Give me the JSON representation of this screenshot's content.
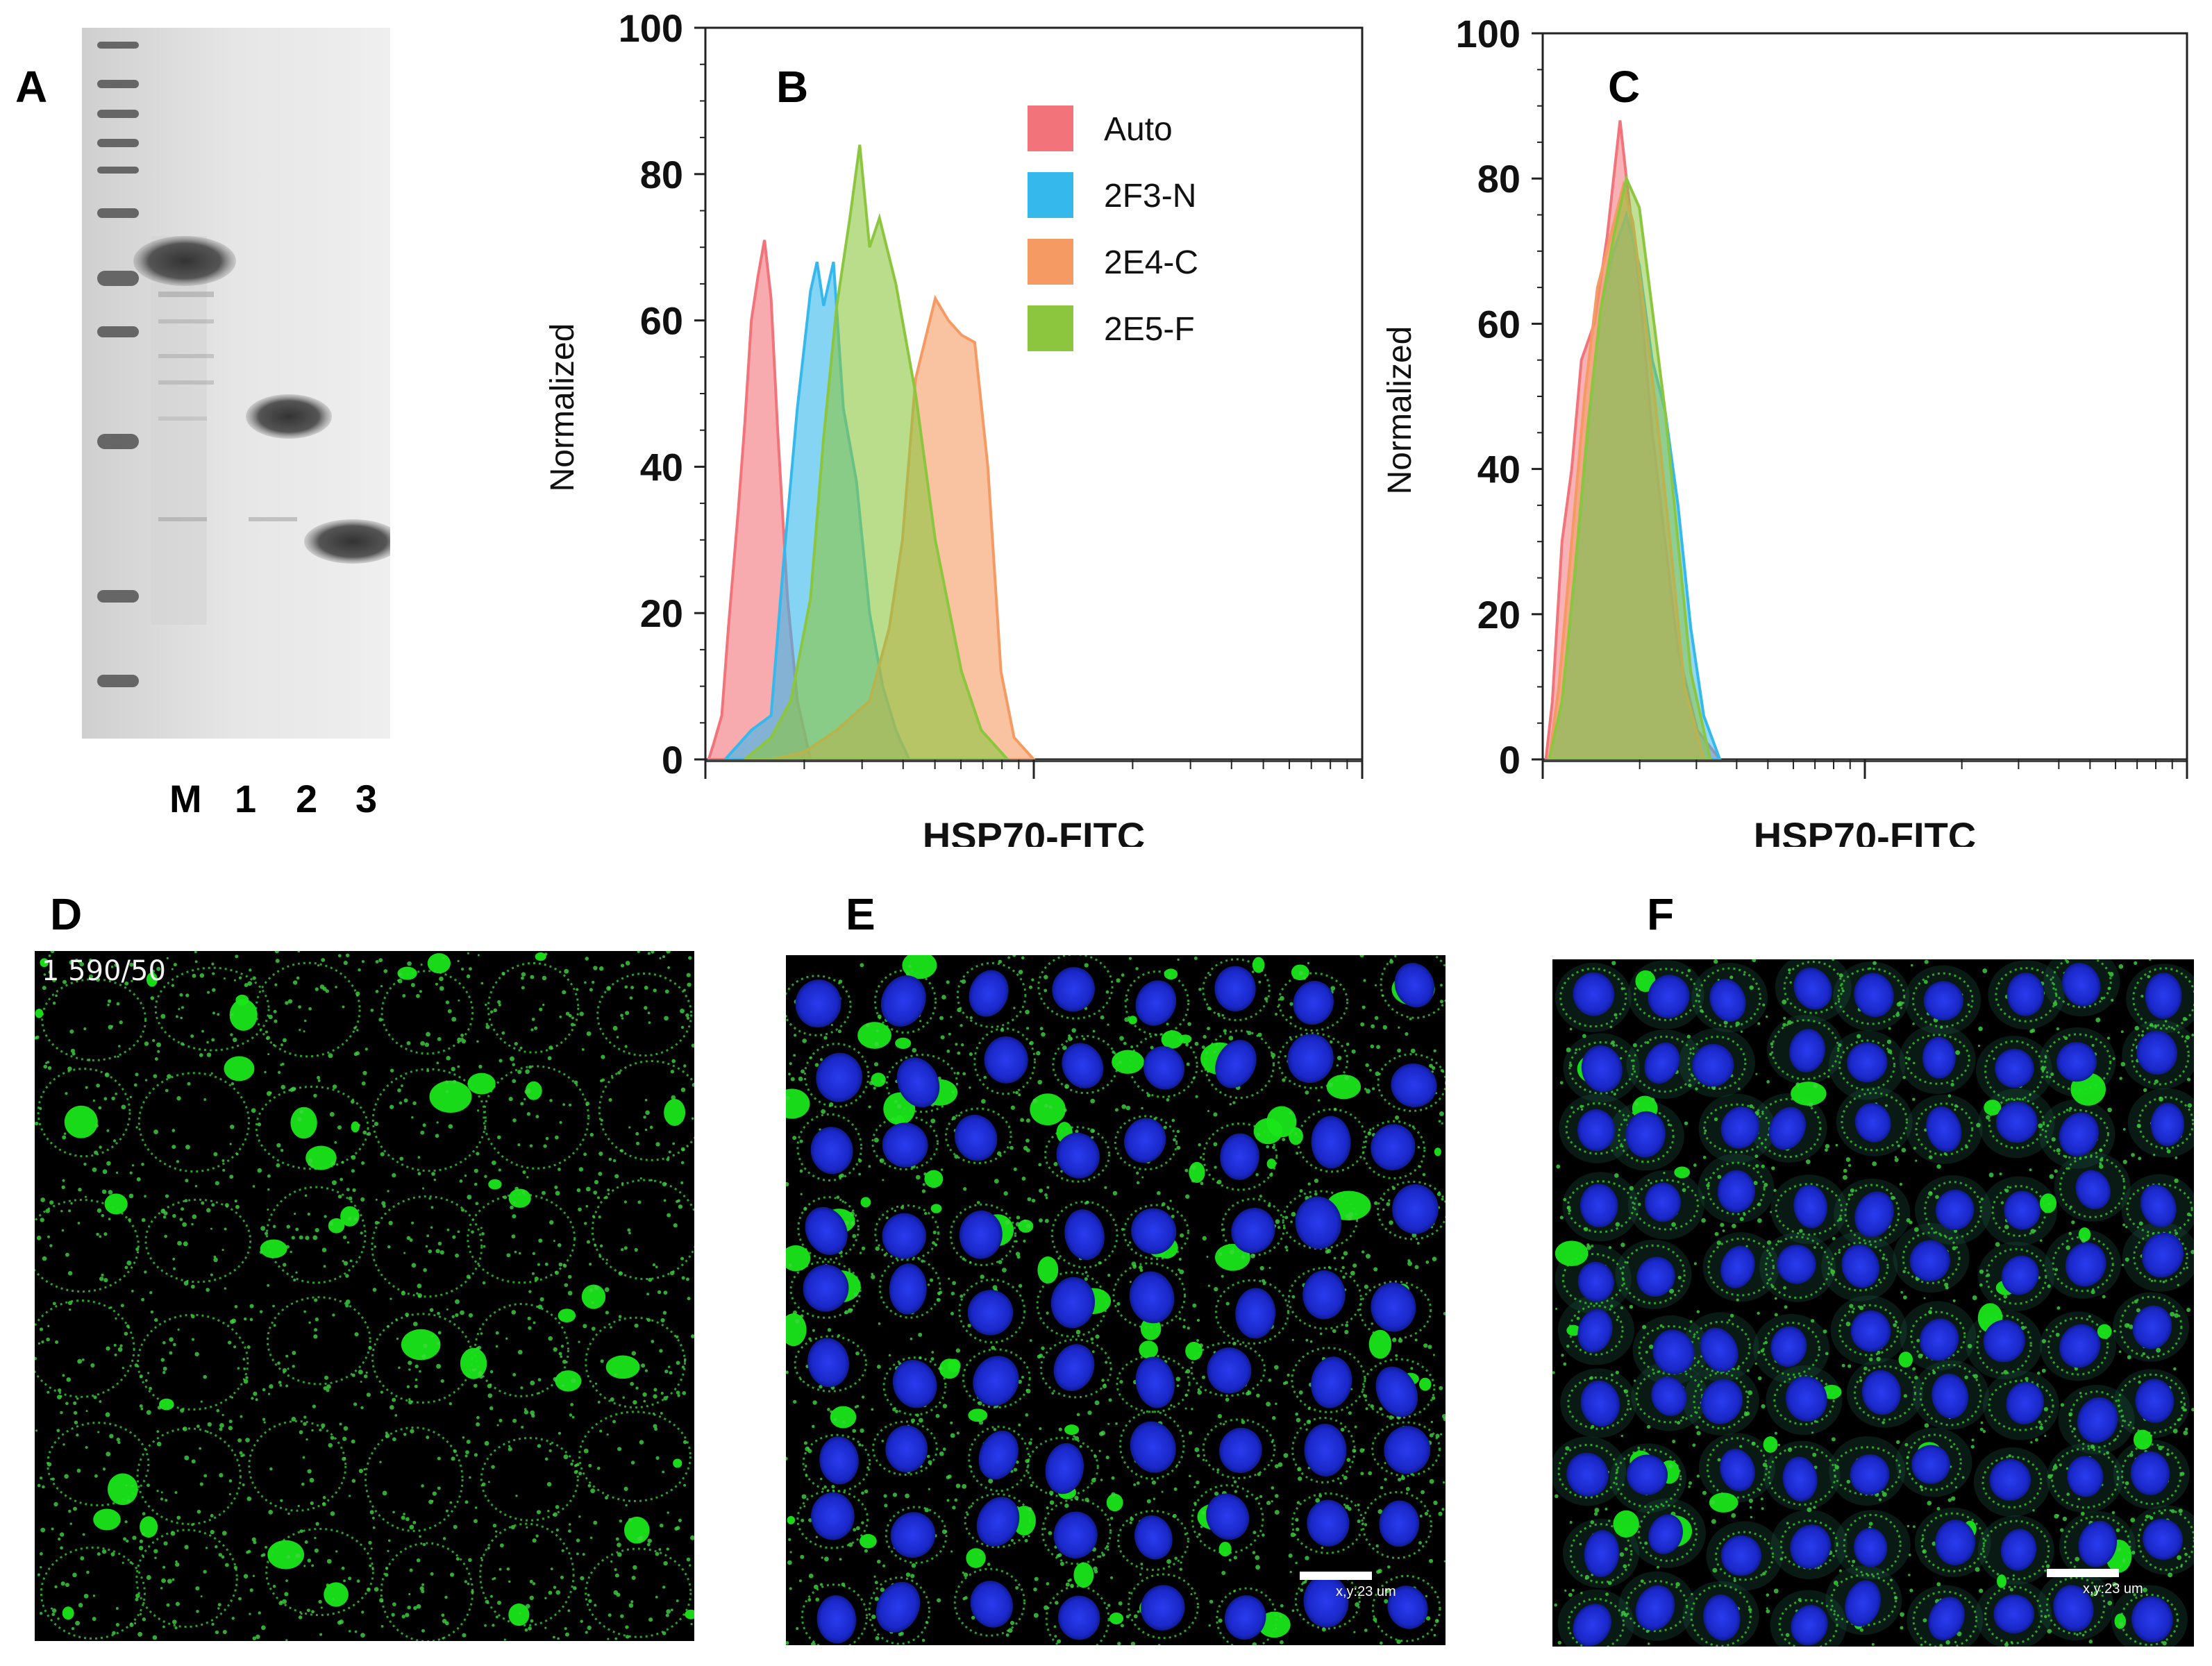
{
  "panels": {
    "A": {
      "letter": "A",
      "lane_labels": [
        "M",
        "1",
        "2",
        "3"
      ]
    },
    "B": {
      "letter": "B"
    },
    "C": {
      "letter": "C"
    },
    "D": {
      "letter": "D",
      "overlay_text": "1 590/50"
    },
    "E": {
      "letter": "E",
      "scale_bar_label": "x,y:23 um"
    },
    "F": {
      "letter": "F",
      "scale_bar_label": "x,y:23 um"
    }
  },
  "colors": {
    "Auto": "#f2737a",
    "2F3-N": "#35b8ec",
    "2E4-C": "#f59a63",
    "2E5-F": "#8cc63f",
    "overlap_C": "#7a7a3a"
  },
  "chart_data": [
    {
      "id": "B",
      "type": "area",
      "xlabel": "HSP70-FITC",
      "ylabel": "Normalized",
      "xscale": "log",
      "ylim": [
        0,
        100
      ],
      "yticks": [
        0,
        20,
        40,
        60,
        80,
        100
      ],
      "grid": false,
      "legend_position": "top-right",
      "series": [
        {
          "name": "Auto",
          "x": [
            0.05,
            0.12,
            0.25,
            0.35,
            0.5,
            0.6,
            0.7,
            0.8,
            0.9,
            1.0,
            1.1,
            1.25,
            1.4,
            1.6
          ],
          "y": [
            0,
            2,
            6,
            18,
            34,
            46,
            60,
            66,
            71,
            63,
            45,
            22,
            8,
            0
          ]
        },
        {
          "name": "2F3-N",
          "x": [
            0.3,
            0.5,
            0.7,
            1.0,
            1.2,
            1.4,
            1.6,
            1.7,
            1.8,
            1.95,
            2.1,
            2.3,
            2.5,
            2.7,
            2.9,
            3.1
          ],
          "y": [
            0,
            2,
            4,
            6,
            28,
            48,
            64,
            68,
            62,
            68,
            48,
            38,
            20,
            10,
            4,
            0
          ]
        },
        {
          "name": "2E4-C",
          "x": [
            1.0,
            1.5,
            2.0,
            2.5,
            2.8,
            3.0,
            3.2,
            3.5,
            3.7,
            3.9,
            4.1,
            4.3,
            4.5,
            4.7,
            5.0
          ],
          "y": [
            0,
            1,
            4,
            8,
            18,
            30,
            52,
            63,
            60,
            58,
            57,
            40,
            12,
            3,
            0
          ]
        },
        {
          "name": "2E5-F",
          "x": [
            0.6,
            1.0,
            1.3,
            1.6,
            1.8,
            2.0,
            2.2,
            2.35,
            2.5,
            2.65,
            2.9,
            3.2,
            3.5,
            3.9,
            4.2,
            4.6
          ],
          "y": [
            0,
            3,
            8,
            22,
            44,
            62,
            74,
            84,
            70,
            74,
            65,
            50,
            30,
            12,
            4,
            0
          ]
        }
      ]
    },
    {
      "id": "C",
      "type": "area",
      "xlabel": "HSP70-FITC",
      "ylabel": "Normalized",
      "xscale": "log",
      "ylim": [
        0,
        100
      ],
      "yticks": [
        0,
        20,
        40,
        60,
        80,
        100
      ],
      "grid": false,
      "series": [
        {
          "name": "Auto",
          "x": [
            0.01,
            0.03,
            0.06,
            0.09,
            0.12,
            0.16,
            0.2,
            0.24,
            0.26,
            0.3,
            0.34,
            0.38,
            0.42,
            0.48,
            0.55
          ],
          "y": [
            0,
            8,
            30,
            40,
            55,
            60,
            72,
            88,
            80,
            65,
            45,
            30,
            15,
            4,
            0
          ]
        },
        {
          "name": "2F3-N",
          "x": [
            0.02,
            0.06,
            0.1,
            0.14,
            0.18,
            0.22,
            0.26,
            0.3,
            0.34,
            0.38,
            0.42,
            0.46,
            0.5,
            0.55
          ],
          "y": [
            0,
            8,
            25,
            45,
            62,
            70,
            75,
            68,
            55,
            48,
            35,
            18,
            6,
            0
          ]
        },
        {
          "name": "2E4-C",
          "x": [
            0.02,
            0.05,
            0.09,
            0.13,
            0.17,
            0.21,
            0.25,
            0.28,
            0.32,
            0.36,
            0.4,
            0.44,
            0.5
          ],
          "y": [
            0,
            10,
            30,
            50,
            65,
            72,
            79,
            74,
            60,
            45,
            28,
            10,
            0
          ]
        },
        {
          "name": "2E5-F",
          "x": [
            0.02,
            0.06,
            0.1,
            0.14,
            0.18,
            0.22,
            0.26,
            0.3,
            0.34,
            0.38,
            0.42,
            0.46,
            0.52
          ],
          "y": [
            0,
            8,
            26,
            46,
            62,
            72,
            80,
            76,
            62,
            48,
            30,
            12,
            0
          ]
        }
      ]
    }
  ]
}
